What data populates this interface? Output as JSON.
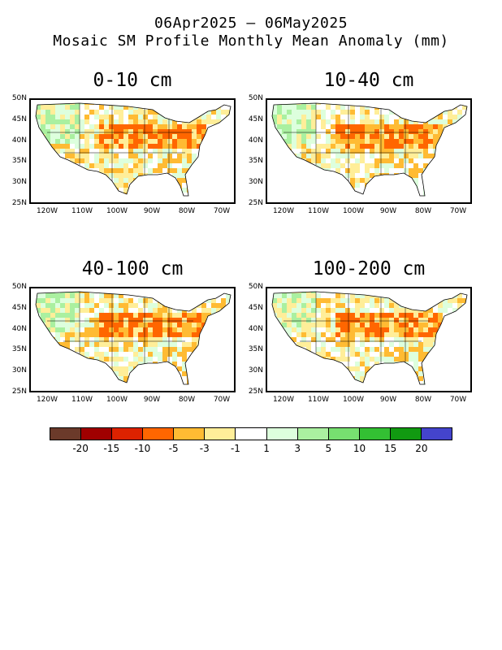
{
  "title": {
    "line1": "06Apr2025 – 06May2025",
    "line2": "Mosaic SM Profile Monthly Mean Anomaly (mm)"
  },
  "panels": [
    {
      "label": "0-10 cm"
    },
    {
      "label": "10-40 cm"
    },
    {
      "label": "40-100 cm"
    },
    {
      "label": "100-200 cm"
    }
  ],
  "axes": {
    "lat_ticks": [
      "50N",
      "45N",
      "40N",
      "35N",
      "30N",
      "25N"
    ],
    "lon_ticks": [
      "120W",
      "110W",
      "100W",
      "90W",
      "80W",
      "70W"
    ]
  },
  "colorbar": {
    "colors": [
      "#6b3a2a",
      "#a00000",
      "#dd2200",
      "#ff6600",
      "#ffbb33",
      "#ffee99",
      "#ffffff",
      "#ddffdd",
      "#aaf0a0",
      "#77e070",
      "#33c033",
      "#119a11",
      "#4444cc"
    ],
    "labels": [
      "-20",
      "-15",
      "-10",
      "-5",
      "-3",
      "-1",
      "1",
      "3",
      "5",
      "10",
      "15",
      "20"
    ]
  }
}
